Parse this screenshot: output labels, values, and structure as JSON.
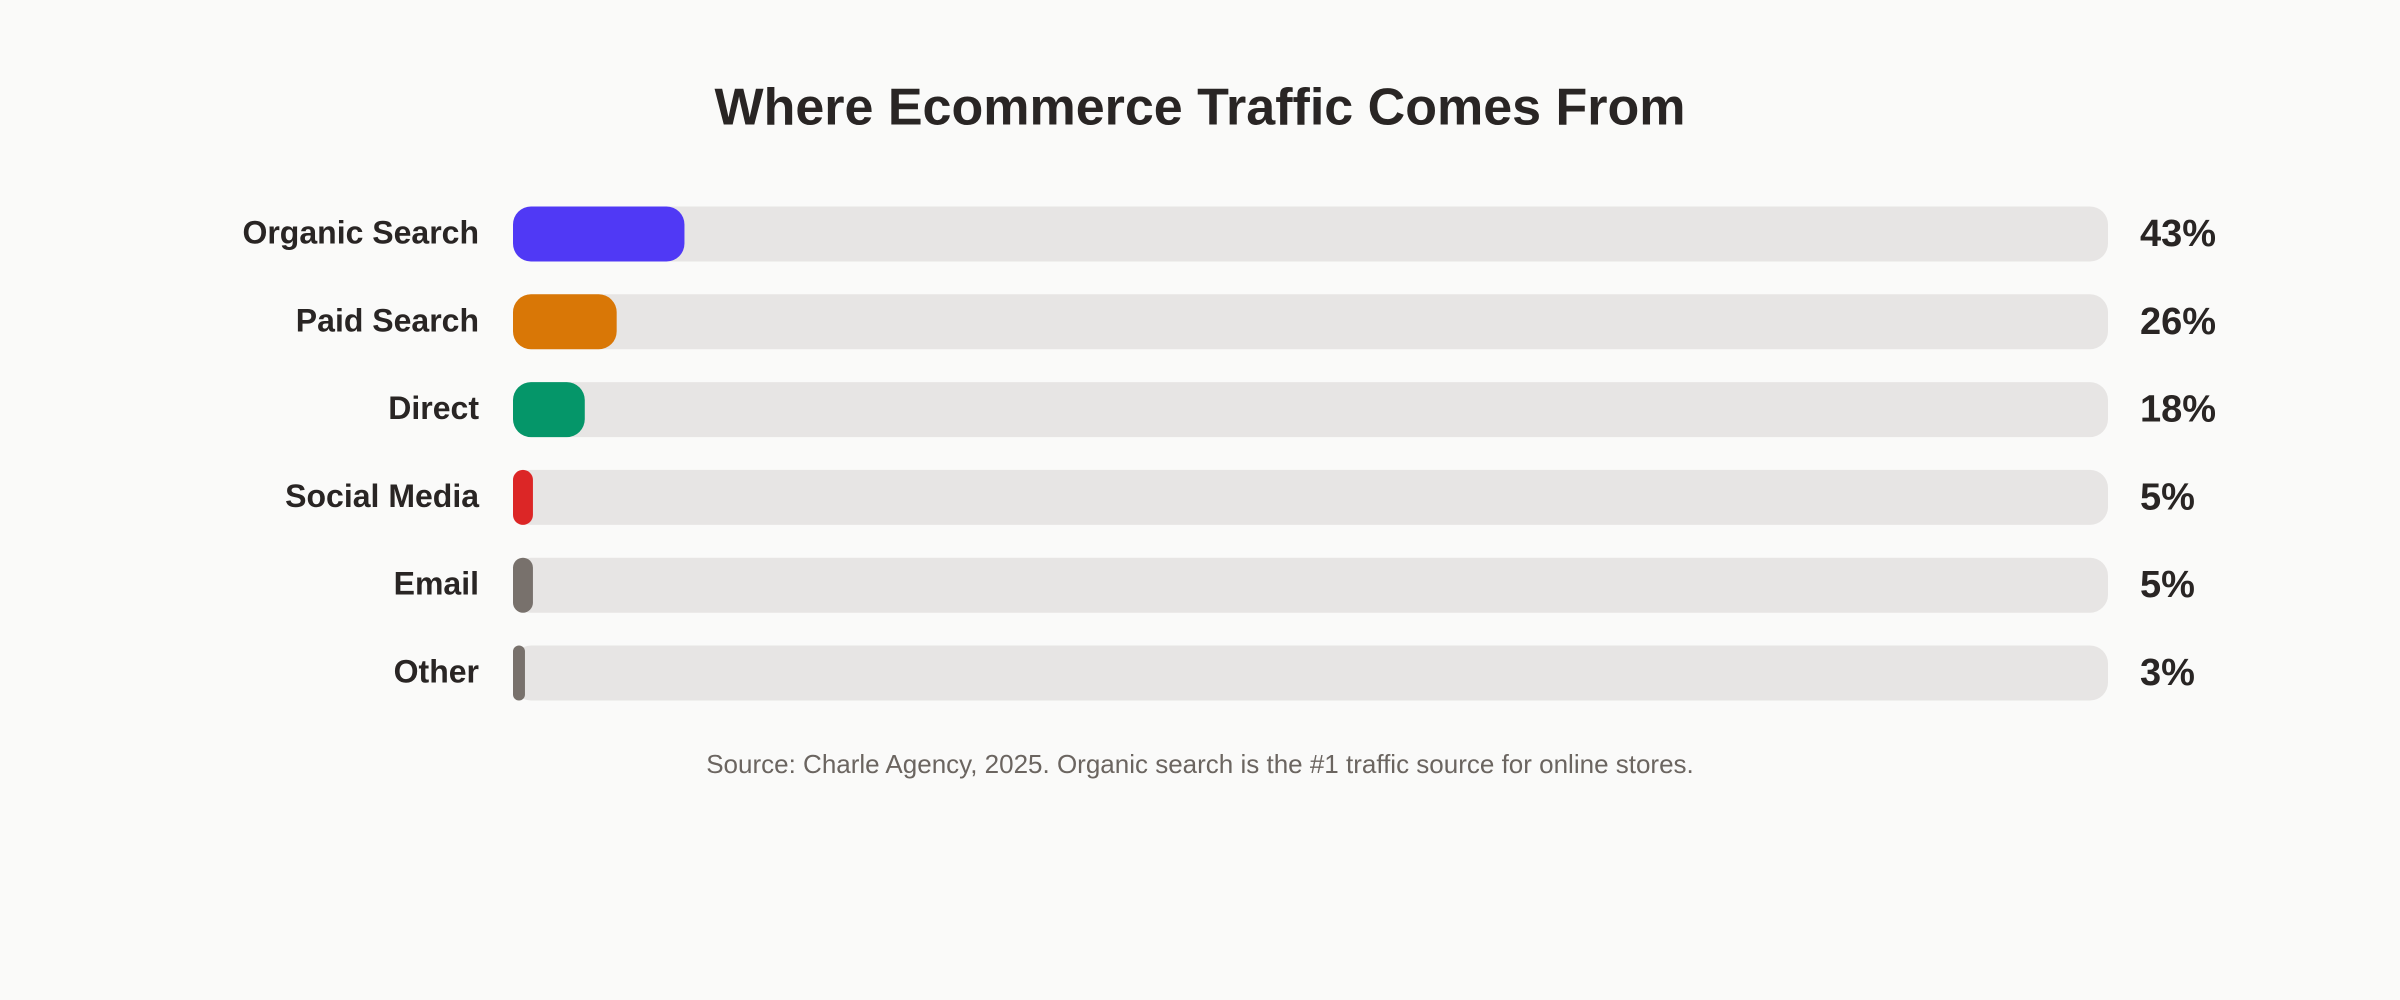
{
  "chart_data": {
    "type": "hbar",
    "title": "Where Ecommerce Traffic Comes From",
    "categories": [
      "Organic Search",
      "Paid Search",
      "Direct",
      "Social Media",
      "Email",
      "Other"
    ],
    "values": [
      43,
      26,
      18,
      5,
      5,
      3
    ],
    "value_labels": [
      "43%",
      "26%",
      "18%",
      "5%",
      "5%",
      "3%"
    ],
    "colors": [
      "#5039f5",
      "#d97706",
      "#059669",
      "#dc2626",
      "#78716c",
      "#78716c"
    ],
    "xlim": [
      0,
      400
    ],
    "note": "Source: Charle Agency, 2025. Organic search is the #1 traffic source for online stores."
  }
}
